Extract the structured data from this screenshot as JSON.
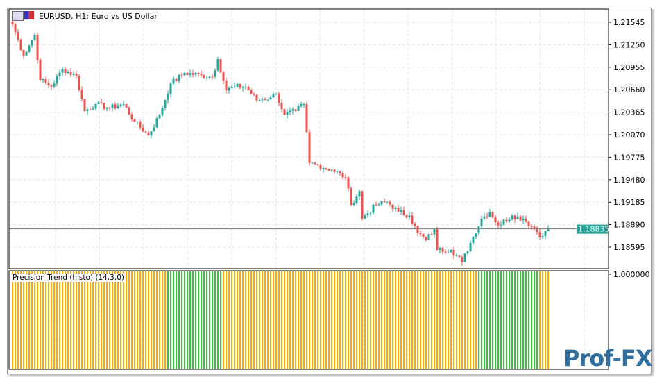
{
  "window": {
    "title": "EURUSD, H1:  Euro vs US Dollar"
  },
  "indicator": {
    "label": "Precision Trend (histo) (14,3.0)",
    "axis_label": "1.000000"
  },
  "logo": "Prof-FX",
  "colors": {
    "bull": "#26a69a",
    "bear": "#ef5350",
    "up_trend": "#3cc13c",
    "down_trend": "#ffaa00",
    "price_tag": "#26a69a",
    "grid": "#e6e6e6"
  },
  "icons": [
    "chart-window-icon",
    "symbol-icon"
  ],
  "chart_data": {
    "type": "candlestick",
    "symbol": "EURUSD",
    "timeframe": "H1",
    "y_ticks": [
      "1.21545",
      "1.21250",
      "1.20955",
      "1.20660",
      "1.20365",
      "1.20070",
      "1.19775",
      "1.19480",
      "1.19185",
      "1.18890",
      "1.18595"
    ],
    "ylim": [
      1.1833,
      1.2173
    ],
    "current_price": "1.18835",
    "grid": true,
    "close_waypoints": [
      [
        0,
        1.2152
      ],
      [
        4,
        1.2111
      ],
      [
        8,
        1.2138
      ],
      [
        10,
        1.2079
      ],
      [
        14,
        1.207
      ],
      [
        18,
        1.2093
      ],
      [
        23,
        1.2084
      ],
      [
        26,
        1.2038
      ],
      [
        30,
        1.2047
      ],
      [
        35,
        1.2042
      ],
      [
        40,
        1.2047
      ],
      [
        44,
        1.2024
      ],
      [
        49,
        1.2006
      ],
      [
        53,
        1.2033
      ],
      [
        57,
        1.2074
      ],
      [
        62,
        1.2088
      ],
      [
        68,
        1.2085
      ],
      [
        72,
        1.2083
      ],
      [
        74,
        1.2106
      ],
      [
        77,
        1.2065
      ],
      [
        80,
        1.207
      ],
      [
        84,
        1.207
      ],
      [
        88,
        1.2052
      ],
      [
        93,
        1.2056
      ],
      [
        95,
        1.2061
      ],
      [
        98,
        1.2033
      ],
      [
        102,
        1.2038
      ],
      [
        105,
        1.2047
      ],
      [
        107,
        1.197
      ],
      [
        110,
        1.1967
      ],
      [
        115,
        1.1961
      ],
      [
        120,
        1.1951
      ],
      [
        122,
        1.1915
      ],
      [
        125,
        1.1933
      ],
      [
        126,
        1.1897
      ],
      [
        131,
        1.1915
      ],
      [
        135,
        1.1919
      ],
      [
        139,
        1.1906
      ],
      [
        143,
        1.1901
      ],
      [
        146,
        1.1878
      ],
      [
        149,
        1.1869
      ],
      [
        152,
        1.1883
      ],
      [
        153,
        1.1856
      ],
      [
        158,
        1.1856
      ],
      [
        162,
        1.184
      ],
      [
        165,
        1.1865
      ],
      [
        169,
        1.1897
      ],
      [
        172,
        1.1906
      ],
      [
        175,
        1.1888
      ],
      [
        180,
        1.1901
      ],
      [
        184,
        1.1897
      ],
      [
        188,
        1.1883
      ],
      [
        191,
        1.1874
      ],
      [
        193,
        1.18835
      ]
    ],
    "histogram": {
      "value": 1.0,
      "trend_segments": [
        {
          "from": 0,
          "to": 55,
          "trend": "down"
        },
        {
          "from": 56,
          "to": 75,
          "trend": "up"
        },
        {
          "from": 76,
          "to": 167,
          "trend": "down"
        },
        {
          "from": 168,
          "to": 189,
          "trend": "up"
        },
        {
          "from": 190,
          "to": 193,
          "trend": "down"
        }
      ]
    }
  }
}
